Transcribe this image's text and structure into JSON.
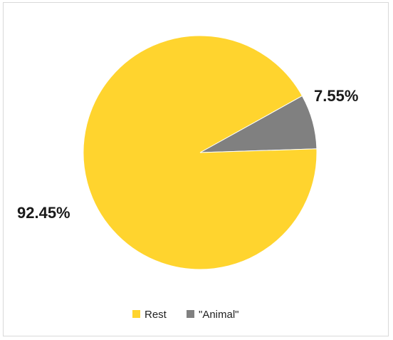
{
  "chart_data": {
    "type": "pie",
    "title": "",
    "legend_placement": "bottom",
    "start_direction": "clockwise-from-top-right",
    "slices": [
      {
        "label": "\"Animal\"",
        "value": 7.55,
        "display": "7.55%",
        "color": "#808080"
      },
      {
        "label": "Rest",
        "value": 92.45,
        "display": "92.45%",
        "color": "#FFD42E"
      }
    ],
    "legend": [
      {
        "label": "Rest",
        "color": "#FFD42E"
      },
      {
        "label": "\"Animal\"",
        "color": "#808080"
      }
    ]
  }
}
